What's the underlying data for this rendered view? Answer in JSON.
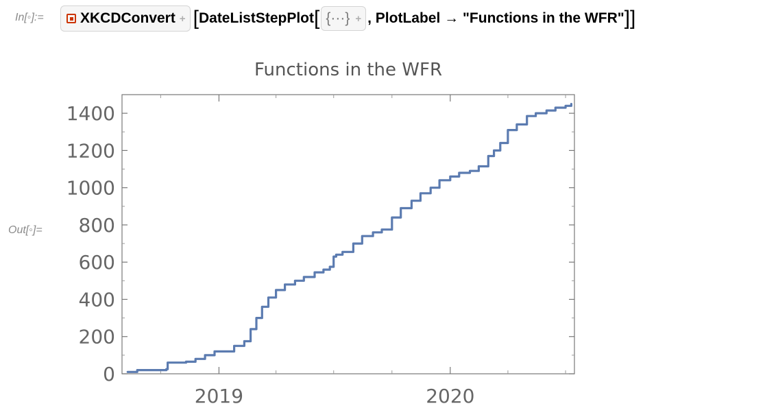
{
  "input_label": "In[◦]:=",
  "output_label": "Out[◦]=",
  "code": {
    "resource_name": "XKCDConvert",
    "function": "DateListStepPlot",
    "open_bracket": "[",
    "close_bracket": "]",
    "close_brackets": "]]",
    "ellipsis": "{···}",
    "option_text": ", PlotLabel → \"Functions in the WFR\""
  },
  "icons": {
    "resource": "resource-object-icon",
    "expand": "plus-icon"
  },
  "colors": {
    "line": "#5b7bb0",
    "axis_text": "#666666",
    "resource_icon": "#cc3300"
  },
  "chart_data": {
    "type": "line",
    "title": "Functions in the WFR",
    "xlabel": "",
    "ylabel": "",
    "x_ticks": [
      "2019",
      "2020"
    ],
    "y_ticks": [
      0,
      200,
      400,
      600,
      800,
      1000,
      1200,
      1400
    ],
    "ylim": [
      0,
      1500
    ],
    "xlim": [
      "2018-08-01",
      "2020-07-15"
    ],
    "series": [
      {
        "x": [
          "2018-08-10",
          "2018-08-25",
          "2018-10-10",
          "2018-10-12",
          "2018-11-10",
          "2018-11-25",
          "2018-12-10",
          "2018-12-25",
          "2019-01-10",
          "2019-01-25",
          "2019-02-10",
          "2019-02-20",
          "2019-03-01",
          "2019-03-10",
          "2019-03-20",
          "2019-04-01",
          "2019-04-15",
          "2019-05-01",
          "2019-05-15",
          "2019-06-01",
          "2019-06-15",
          "2019-06-25",
          "2019-07-01",
          "2019-07-05",
          "2019-07-15",
          "2019-08-01",
          "2019-08-15",
          "2019-09-01",
          "2019-09-15",
          "2019-10-01",
          "2019-10-15",
          "2019-11-01",
          "2019-11-15",
          "2019-12-01",
          "2019-12-15",
          "2020-01-01",
          "2020-01-15",
          "2020-02-01",
          "2020-02-15",
          "2020-03-01",
          "2020-03-10",
          "2020-03-20",
          "2020-04-01",
          "2020-04-15",
          "2020-05-01",
          "2020-05-15",
          "2020-06-01",
          "2020-06-15",
          "2020-07-01",
          "2020-07-10"
        ],
        "y": [
          10,
          20,
          25,
          60,
          65,
          80,
          100,
          120,
          120,
          150,
          175,
          240,
          300,
          360,
          410,
          450,
          480,
          500,
          520,
          545,
          560,
          575,
          630,
          640,
          655,
          700,
          740,
          760,
          775,
          840,
          890,
          930,
          970,
          1000,
          1040,
          1060,
          1080,
          1090,
          1115,
          1170,
          1200,
          1240,
          1310,
          1340,
          1385,
          1400,
          1415,
          1430,
          1440,
          1450
        ]
      }
    ]
  }
}
